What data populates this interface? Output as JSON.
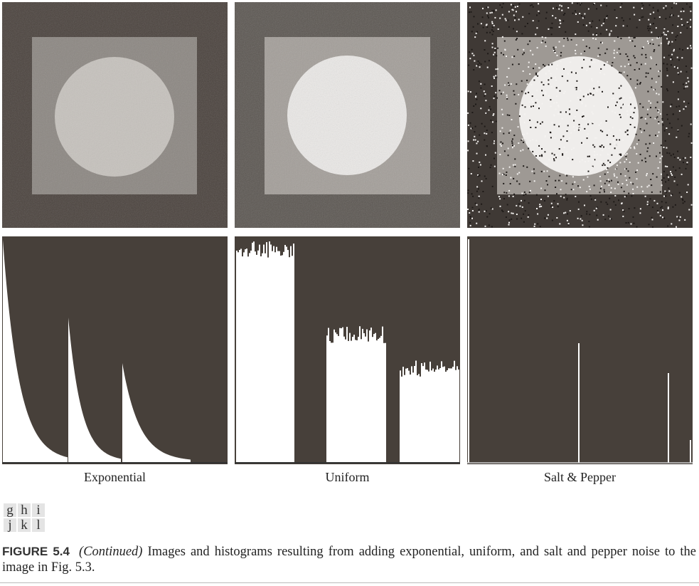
{
  "panels": [
    {
      "label": "Exponential"
    },
    {
      "label": "Uniform"
    },
    {
      "label": "Salt & Pepper"
    }
  ],
  "panel_letters": [
    [
      "g",
      "h",
      "i"
    ],
    [
      "j",
      "k",
      "l"
    ]
  ],
  "caption": {
    "label": "FIGURE 5.4",
    "continued": "(Continued)",
    "text": "Images and histograms resulting from adding exponential, uniform, and salt and pepper noise to the image in Fig. 5.3."
  }
}
